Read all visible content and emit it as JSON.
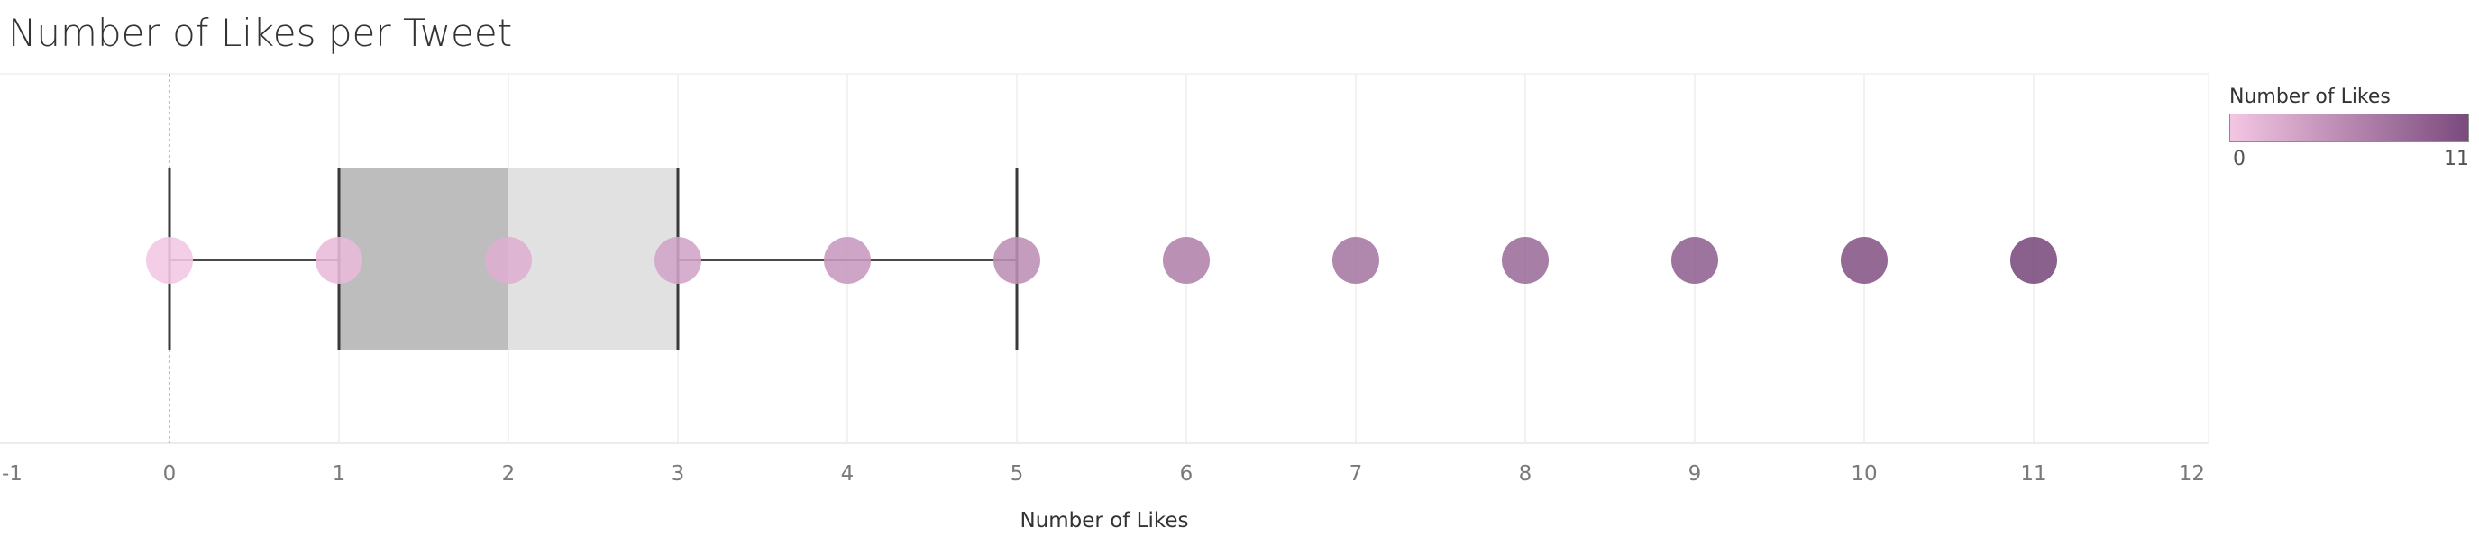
{
  "title": "Number of Likes per Tweet",
  "legend": {
    "title": "Number of Likes",
    "min_label": "0",
    "max_label": "11",
    "color_low": "#F3C6E3",
    "color_high": "#7A4A7D"
  },
  "chart_data": {
    "type": "scatter",
    "title": "Number of Likes per Tweet",
    "xlabel": "Number of Likes",
    "ylabel": "",
    "xlim": [
      -1,
      12
    ],
    "x_ticks": [
      -1,
      0,
      1,
      2,
      3,
      4,
      5,
      6,
      7,
      8,
      9,
      10,
      11,
      12
    ],
    "x_tick_labels": [
      "-1",
      "0",
      "1",
      "2",
      "3",
      "4",
      "5",
      "6",
      "7",
      "8",
      "9",
      "10",
      "11",
      "12"
    ],
    "grid": true,
    "points": [
      {
        "x": 0
      },
      {
        "x": 1
      },
      {
        "x": 2
      },
      {
        "x": 3
      },
      {
        "x": 4
      },
      {
        "x": 5
      },
      {
        "x": 6
      },
      {
        "x": 7
      },
      {
        "x": 8
      },
      {
        "x": 9
      },
      {
        "x": 10
      },
      {
        "x": 11
      }
    ],
    "box_plot": {
      "whisker_low": 0,
      "q1": 1,
      "median": 2,
      "q3": 3,
      "whisker_high": 5,
      "lower_box_color": "#BDBDBD",
      "upper_box_color": "#E1E1E1"
    },
    "color_scale": {
      "field": "Number of Likes",
      "min": 0,
      "max": 11,
      "colors": [
        "#F3C6E3",
        "#7A4A7D"
      ]
    },
    "legend_position": "top-right"
  }
}
